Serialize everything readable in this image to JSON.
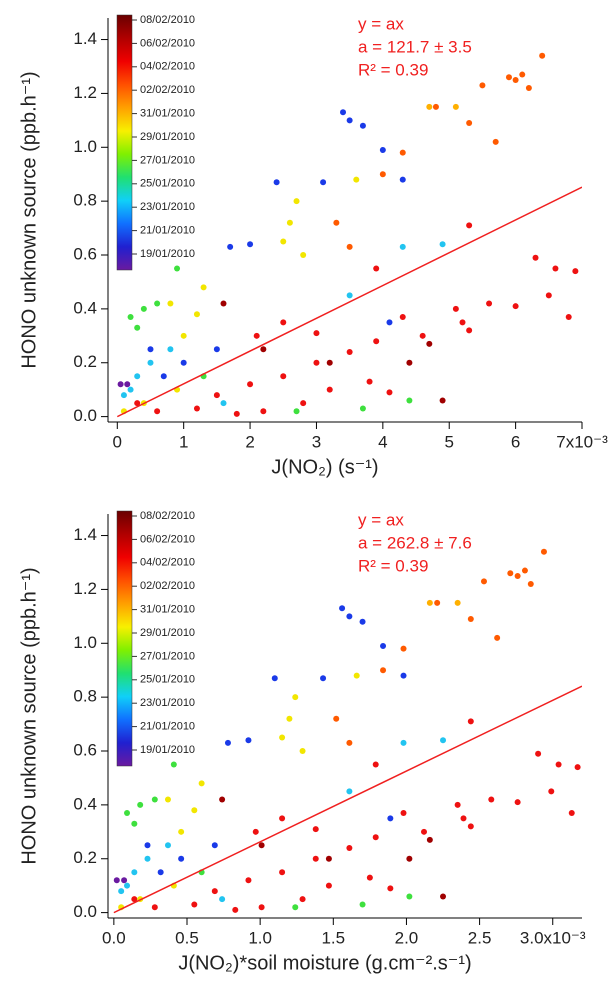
{
  "chart_data": [
    {
      "type": "scatter",
      "xlabel": "J(NO₂) (s⁻¹)",
      "ylabel": "HONO unknown source (ppb.h⁻¹)",
      "annotations": [
        "y = ax",
        "a = 121.7 ± 3.5",
        "R² = 0.39"
      ],
      "fit_slope": 121.7,
      "fit_color": "#f02020",
      "xlim": [
        -0.00014,
        0.007
      ],
      "ylim": [
        -0.02,
        1.48
      ],
      "xticks": [
        0,
        {
          "value": 0.001,
          "label": "1"
        },
        {
          "value": 0.002,
          "label": "2"
        },
        {
          "value": 0.003,
          "label": "3"
        },
        {
          "value": 0.004,
          "label": "4"
        },
        {
          "value": 0.005,
          "label": "5"
        },
        {
          "value": 0.006,
          "label": "6"
        },
        {
          "value": 0.007,
          "label": "7x10⁻³"
        }
      ],
      "yticks": [
        {
          "value": 0,
          "label": "0.0"
        },
        0.2,
        0.4,
        0.6,
        0.8,
        {
          "value": 1,
          "label": "1.0"
        },
        1.2,
        1.4
      ],
      "colorbar": {
        "labels": [
          "08/02/2010",
          "06/02/2010",
          "04/02/2010",
          "02/02/2010",
          "31/01/2010",
          "29/01/2010",
          "27/01/2010",
          "25/01/2010",
          "23/01/2010",
          "21/01/2010",
          "19/01/2010"
        ],
        "colors": [
          "#6a0000",
          "#b00000",
          "#f00000",
          "#ff5000",
          "#ffa000",
          "#f8f000",
          "#80f000",
          "#20e070",
          "#10d0f8",
          "#1070ff",
          "#2020d0",
          "#6a1aa0"
        ]
      },
      "x": [
        0.0064,
        0.0061,
        0.006,
        0.0059,
        0.0062,
        0.0055,
        0.0051,
        0.0047,
        0.0048,
        0.0053,
        0.0057,
        0.0063,
        0.0066,
        0.0069,
        0.0065,
        0.0068,
        0.006,
        0.0056,
        0.0051,
        0.0052,
        0.0053,
        0.0049,
        0.0043,
        0.0046,
        0.0039,
        0.0035,
        0.003,
        0.0025,
        0.0032,
        0.0038,
        0.0041,
        0.0028,
        0.0022,
        0.0018,
        0.0012,
        0.0006,
        0.0003,
        0.0015,
        0.002,
        0.0034,
        0.0035,
        0.0037,
        0.004,
        0.0043,
        0.004,
        0.0036,
        0.0031,
        0.0027,
        0.0026,
        0.0025,
        0.0028,
        0.0033,
        0.0035,
        0.0043,
        0.0049,
        0.002,
        0.0017,
        0.0024,
        0.0043,
        0.0053,
        0.0039,
        0.0035,
        0.0041,
        0.001,
        0.0012,
        0.0008,
        0.0013,
        0.0004,
        0.0002,
        0.0003,
        0.0006,
        0.0009,
        0.0008,
        0.0005,
        0.0003,
        0.0002,
        0.0001,
        0.0007,
        0.001,
        0.0005,
        0.0015,
        0.0009,
        0.0004,
        0.0001,
        0.0013,
        0.0016,
        0.0027,
        0.0037,
        0.0044,
        0.0021,
        0.0025,
        0.003,
        5e-05,
        0.00015,
        0.0016,
        0.0022,
        0.0032,
        0.0044,
        0.0047
      ],
      "y": [
        1.34,
        1.27,
        1.25,
        1.26,
        1.22,
        1.23,
        1.15,
        1.15,
        1.15,
        1.09,
        1.02,
        0.59,
        0.55,
        0.54,
        0.45,
        0.37,
        0.41,
        0.42,
        0.4,
        0.35,
        0.32,
        0.06,
        0.37,
        0.3,
        0.28,
        0.24,
        0.2,
        0.15,
        0.1,
        0.13,
        0.09,
        0.05,
        0.02,
        0.01,
        0.03,
        0.02,
        0.05,
        0.08,
        0.12,
        1.13,
        1.1,
        1.08,
        0.99,
        0.98,
        0.9,
        0.88,
        0.87,
        0.8,
        0.72,
        0.65,
        0.6,
        0.72,
        0.63,
        0.63,
        0.64,
        0.64,
        0.63,
        0.87,
        0.88,
        0.71,
        0.55,
        0.45,
        0.35,
        0.3,
        0.38,
        0.42,
        0.48,
        0.4,
        0.37,
        0.33,
        0.42,
        0.55,
        0.25,
        0.2,
        0.15,
        0.1,
        0.08,
        0.15,
        0.2,
        0.25,
        0.25,
        0.1,
        0.05,
        0.02,
        0.15,
        0.05,
        0.02,
        0.03,
        0.06,
        0.3,
        0.35,
        0.31,
        0.12,
        0.12,
        0.42,
        0.25,
        0.2,
        0.2,
        0.27
      ],
      "colors": [
        "#ff5a00",
        "#ff5a00",
        "#ff5a00",
        "#ff5a00",
        "#ff5a00",
        "#ff5a00",
        "#ffb000",
        "#ffb000",
        "#ff5a00",
        "#ff5a00",
        "#ff5a00",
        "#ee1111",
        "#ee1111",
        "#ee1111",
        "#ee1111",
        "#ee1111",
        "#ee1111",
        "#ee1111",
        "#ee1111",
        "#ee1111",
        "#ee1111",
        "#a00000",
        "#ee1111",
        "#ee1111",
        "#ee1111",
        "#ee1111",
        "#ee1111",
        "#ee1111",
        "#ee1111",
        "#ee1111",
        "#ee1111",
        "#ee1111",
        "#ee1111",
        "#ee1111",
        "#ee1111",
        "#ee1111",
        "#ee1111",
        "#ee1111",
        "#ee1111",
        "#1a3ae8",
        "#1a3ae8",
        "#1a3ae8",
        "#1a3ae8",
        "#ff5a00",
        "#ff5a00",
        "#f2e600",
        "#1a3ae8",
        "#f2e600",
        "#f2e600",
        "#f2e600",
        "#f2e600",
        "#ff5a00",
        "#ff5a00",
        "#22c4f0",
        "#22c4f0",
        "#1a3ae8",
        "#1a3ae8",
        "#1a3ae8",
        "#1a3ae8",
        "#ee1111",
        "#ee1111",
        "#22c4f0",
        "#1a3ae8",
        "#f2e600",
        "#f2e600",
        "#f2e600",
        "#f2e600",
        "#3ee03e",
        "#3ee03e",
        "#3ee03e",
        "#3ee03e",
        "#3ee03e",
        "#22c4f0",
        "#22c4f0",
        "#22c4f0",
        "#22c4f0",
        "#22c4f0",
        "#1a3ae8",
        "#1a3ae8",
        "#1a3ae8",
        "#1a3ae8",
        "#f2e600",
        "#f2e600",
        "#f2e600",
        "#3ee03e",
        "#22c4f0",
        "#3ee03e",
        "#3ee03e",
        "#3ee03e",
        "#ee1111",
        "#ee1111",
        "#ee1111",
        "#6a1aa0",
        "#6a1aa0",
        "#a00000",
        "#a00000",
        "#a00000",
        "#a00000",
        "#a00000"
      ]
    },
    {
      "type": "scatter",
      "xlabel": "J(NO₂)*soil moisture (g.cm⁻².s⁻¹)",
      "ylabel": "HONO unknown source (ppb.h⁻¹)",
      "annotations": [
        "y = ax",
        "a = 262.8 ± 7.6",
        "R² = 0.39"
      ],
      "fit_slope": 262.8,
      "fit_color": "#f02020",
      "xlim": [
        -4e-05,
        0.0032
      ],
      "ylim": [
        -0.02,
        1.48
      ],
      "xticks": [
        {
          "value": 0,
          "label": "0.0"
        },
        {
          "value": 0.0005,
          "label": "0.5"
        },
        {
          "value": 0.001,
          "label": "1.0"
        },
        {
          "value": 0.0015,
          "label": "1.5"
        },
        {
          "value": 0.002,
          "label": "2.0"
        },
        {
          "value": 0.0025,
          "label": "2.5"
        },
        {
          "value": 0.003,
          "label": "3.0x10⁻³"
        }
      ],
      "yticks": [
        {
          "value": 0,
          "label": "0.0"
        },
        0.2,
        0.4,
        0.6,
        0.8,
        {
          "value": 1,
          "label": "1.0"
        },
        1.2,
        1.4
      ],
      "colorbar": {
        "labels": [
          "08/02/2010",
          "06/02/2010",
          "04/02/2010",
          "02/02/2010",
          "31/01/2010",
          "29/01/2010",
          "27/01/2010",
          "25/01/2010",
          "23/01/2010",
          "21/01/2010",
          "19/01/2010"
        ],
        "colors": [
          "#6a0000",
          "#b00000",
          "#f00000",
          "#ff5000",
          "#ffa000",
          "#f8f000",
          "#80f000",
          "#20e070",
          "#10d0f8",
          "#1070ff",
          "#2020d0",
          "#6a1aa0"
        ]
      },
      "x": [
        0.00294,
        0.00281,
        0.00276,
        0.00271,
        0.00285,
        0.00253,
        0.00235,
        0.00216,
        0.00221,
        0.00244,
        0.00262,
        0.0029,
        0.00304,
        0.00317,
        0.00299,
        0.00313,
        0.00276,
        0.00258,
        0.00235,
        0.00239,
        0.00244,
        0.00225,
        0.00198,
        0.00212,
        0.00179,
        0.00161,
        0.00138,
        0.00115,
        0.00147,
        0.00175,
        0.00189,
        0.00129,
        0.00101,
        0.00083,
        0.00055,
        0.00028,
        0.00014,
        0.00069,
        0.00092,
        0.00156,
        0.00161,
        0.0017,
        0.00184,
        0.00198,
        0.00184,
        0.00166,
        0.00143,
        0.00124,
        0.0012,
        0.00115,
        0.00129,
        0.00152,
        0.00161,
        0.00198,
        0.00225,
        0.00092,
        0.00078,
        0.0011,
        0.00198,
        0.00244,
        0.00179,
        0.00161,
        0.00189,
        0.00046,
        0.00055,
        0.00037,
        0.0006,
        0.00018,
        9e-05,
        0.00014,
        0.00028,
        0.00041,
        0.00037,
        0.00023,
        0.00014,
        9e-05,
        5e-05,
        0.00032,
        0.00046,
        0.00023,
        0.00069,
        0.00041,
        0.00018,
        5e-05,
        0.0006,
        0.00074,
        0.00124,
        0.0017,
        0.00202,
        0.00097,
        0.00115,
        0.00138,
        2e-05,
        7e-05,
        0.00074,
        0.00101,
        0.00147,
        0.00202,
        0.00216
      ],
      "y": [
        1.34,
        1.27,
        1.25,
        1.26,
        1.22,
        1.23,
        1.15,
        1.15,
        1.15,
        1.09,
        1.02,
        0.59,
        0.55,
        0.54,
        0.45,
        0.37,
        0.41,
        0.42,
        0.4,
        0.35,
        0.32,
        0.06,
        0.37,
        0.3,
        0.28,
        0.24,
        0.2,
        0.15,
        0.1,
        0.13,
        0.09,
        0.05,
        0.02,
        0.01,
        0.03,
        0.02,
        0.05,
        0.08,
        0.12,
        1.13,
        1.1,
        1.08,
        0.99,
        0.98,
        0.9,
        0.88,
        0.87,
        0.8,
        0.72,
        0.65,
        0.6,
        0.72,
        0.63,
        0.63,
        0.64,
        0.64,
        0.63,
        0.87,
        0.88,
        0.71,
        0.55,
        0.45,
        0.35,
        0.3,
        0.38,
        0.42,
        0.48,
        0.4,
        0.37,
        0.33,
        0.42,
        0.55,
        0.25,
        0.2,
        0.15,
        0.1,
        0.08,
        0.15,
        0.2,
        0.25,
        0.25,
        0.1,
        0.05,
        0.02,
        0.15,
        0.05,
        0.02,
        0.03,
        0.06,
        0.3,
        0.35,
        0.31,
        0.12,
        0.12,
        0.42,
        0.25,
        0.2,
        0.2,
        0.27
      ],
      "colors": [
        "#ff5a00",
        "#ff5a00",
        "#ff5a00",
        "#ff5a00",
        "#ff5a00",
        "#ff5a00",
        "#ffb000",
        "#ffb000",
        "#ff5a00",
        "#ff5a00",
        "#ff5a00",
        "#ee1111",
        "#ee1111",
        "#ee1111",
        "#ee1111",
        "#ee1111",
        "#ee1111",
        "#ee1111",
        "#ee1111",
        "#ee1111",
        "#ee1111",
        "#a00000",
        "#ee1111",
        "#ee1111",
        "#ee1111",
        "#ee1111",
        "#ee1111",
        "#ee1111",
        "#ee1111",
        "#ee1111",
        "#ee1111",
        "#ee1111",
        "#ee1111",
        "#ee1111",
        "#ee1111",
        "#ee1111",
        "#ee1111",
        "#ee1111",
        "#ee1111",
        "#1a3ae8",
        "#1a3ae8",
        "#1a3ae8",
        "#1a3ae8",
        "#ff5a00",
        "#ff5a00",
        "#f2e600",
        "#1a3ae8",
        "#f2e600",
        "#f2e600",
        "#f2e600",
        "#f2e600",
        "#ff5a00",
        "#ff5a00",
        "#22c4f0",
        "#22c4f0",
        "#1a3ae8",
        "#1a3ae8",
        "#1a3ae8",
        "#1a3ae8",
        "#ee1111",
        "#ee1111",
        "#22c4f0",
        "#1a3ae8",
        "#f2e600",
        "#f2e600",
        "#f2e600",
        "#f2e600",
        "#3ee03e",
        "#3ee03e",
        "#3ee03e",
        "#3ee03e",
        "#3ee03e",
        "#22c4f0",
        "#22c4f0",
        "#22c4f0",
        "#22c4f0",
        "#22c4f0",
        "#1a3ae8",
        "#1a3ae8",
        "#1a3ae8",
        "#1a3ae8",
        "#f2e600",
        "#f2e600",
        "#f2e600",
        "#3ee03e",
        "#22c4f0",
        "#3ee03e",
        "#3ee03e",
        "#3ee03e",
        "#ee1111",
        "#ee1111",
        "#ee1111",
        "#6a1aa0",
        "#6a1aa0",
        "#a00000",
        "#a00000",
        "#a00000",
        "#a00000",
        "#a00000"
      ]
    }
  ]
}
